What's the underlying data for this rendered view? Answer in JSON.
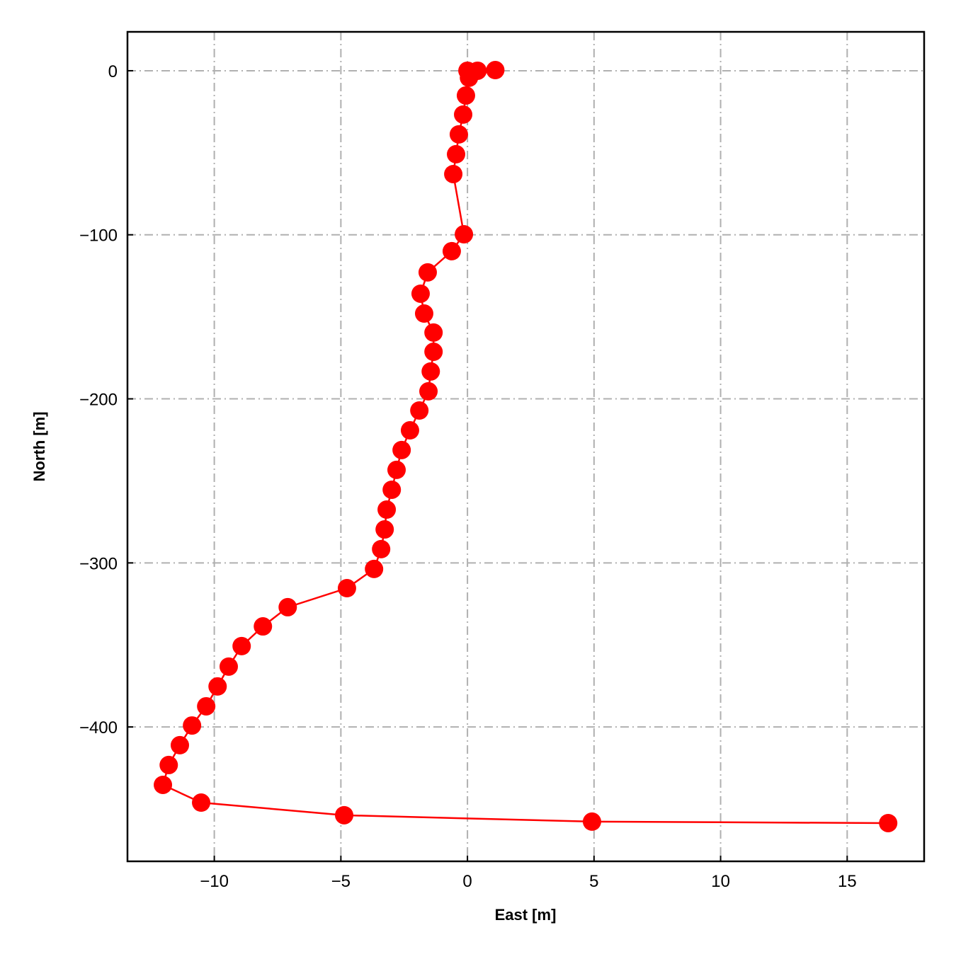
{
  "chart_data": {
    "type": "line",
    "x_label": "East [m]",
    "y_label": "North [m]",
    "xlim": [
      -13.43,
      18.04
    ],
    "ylim": [
      -481.9,
      23.7
    ],
    "xticks": [
      {
        "value": -10,
        "label": "−10"
      },
      {
        "value": -5,
        "label": "−5"
      },
      0,
      5,
      10,
      15
    ],
    "yticks": [
      {
        "value": -400,
        "label": "−400"
      },
      {
        "value": -300,
        "label": "−300"
      },
      {
        "value": -200,
        "label": "−200"
      },
      {
        "value": -100,
        "label": "−100"
      },
      0
    ],
    "grid": true,
    "series": [
      {
        "color": "#ff0000",
        "x": [
          1.1,
          0.4,
          0,
          0.06,
          -0.06,
          -0.17,
          -0.34,
          -0.45,
          -0.56,
          -0.14,
          -0.62,
          -1.57,
          -1.85,
          -1.71,
          -1.34,
          -1.34,
          -1.45,
          -1.54,
          -1.9,
          -2.27,
          -2.6,
          -2.8,
          -2.99,
          -3.19,
          -3.27,
          -3.41,
          -3.69,
          -4.76,
          -7.1,
          -8.08,
          -8.92,
          -9.43,
          -9.87,
          -10.32,
          -10.88,
          -11.36,
          -11.8,
          -12.03,
          -10.52,
          -4.87,
          4.92,
          16.62
        ],
        "values": [
          0.4,
          0,
          0,
          -4.3,
          -15.1,
          -26.7,
          -38.8,
          -50.9,
          -63.0,
          -99.7,
          -110.0,
          -122.9,
          -135.9,
          -148.0,
          -159.6,
          -171.3,
          -183.3,
          -195.4,
          -207.1,
          -219.2,
          -231.2,
          -243.3,
          -255.4,
          -267.5,
          -279.6,
          -291.6,
          -303.7,
          -315.4,
          -327.0,
          -338.7,
          -350.7,
          -363.2,
          -375.3,
          -387.4,
          -399.1,
          -411.1,
          -423.2,
          -435.3,
          -446.1,
          -453.8,
          -457.7,
          -458.6
        ]
      }
    ]
  }
}
